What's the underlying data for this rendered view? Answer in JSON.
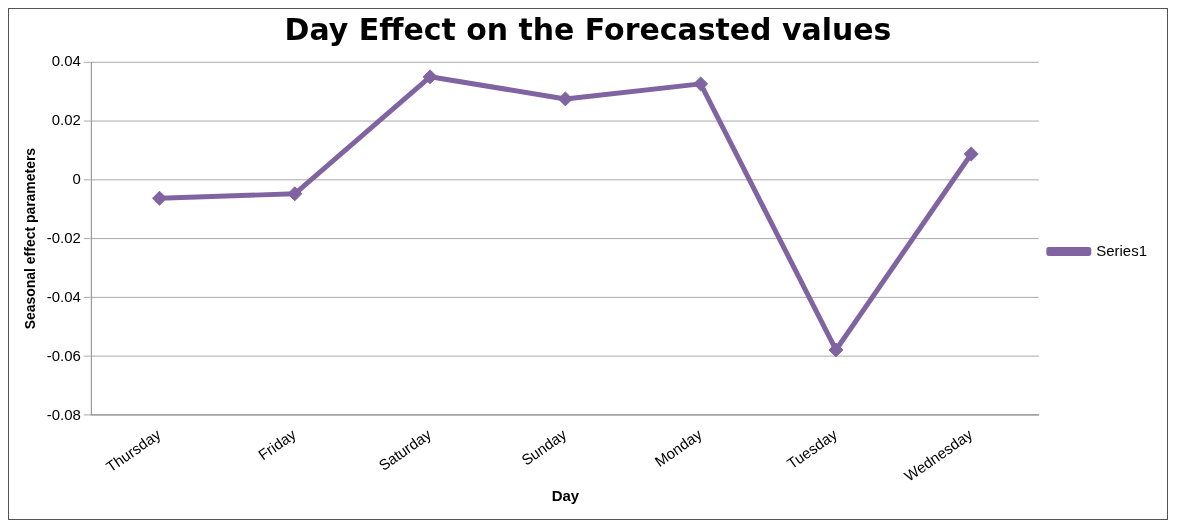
{
  "chart_data": {
    "type": "line",
    "title": "Day Effect on the Forecasted values",
    "xlabel": "Day",
    "ylabel": "Seasonal effect parameters",
    "categories": [
      "Thursday",
      "Friday",
      "Saturday",
      "Sunday",
      "Monday",
      "Tuesday",
      "Wednesday"
    ],
    "series": [
      {
        "name": "Series1",
        "color": "#8064a2",
        "values": [
          -0.0063,
          -0.0048,
          0.0349,
          0.0274,
          0.0325,
          -0.0578,
          0.0087
        ]
      }
    ],
    "ylim": [
      -0.08,
      0.04
    ],
    "yticks": [
      -0.08,
      -0.06,
      -0.04,
      -0.02,
      0,
      0.02,
      0.04
    ],
    "grid": "y",
    "legend": "right",
    "marker": "diamond",
    "line_style": "solid"
  }
}
